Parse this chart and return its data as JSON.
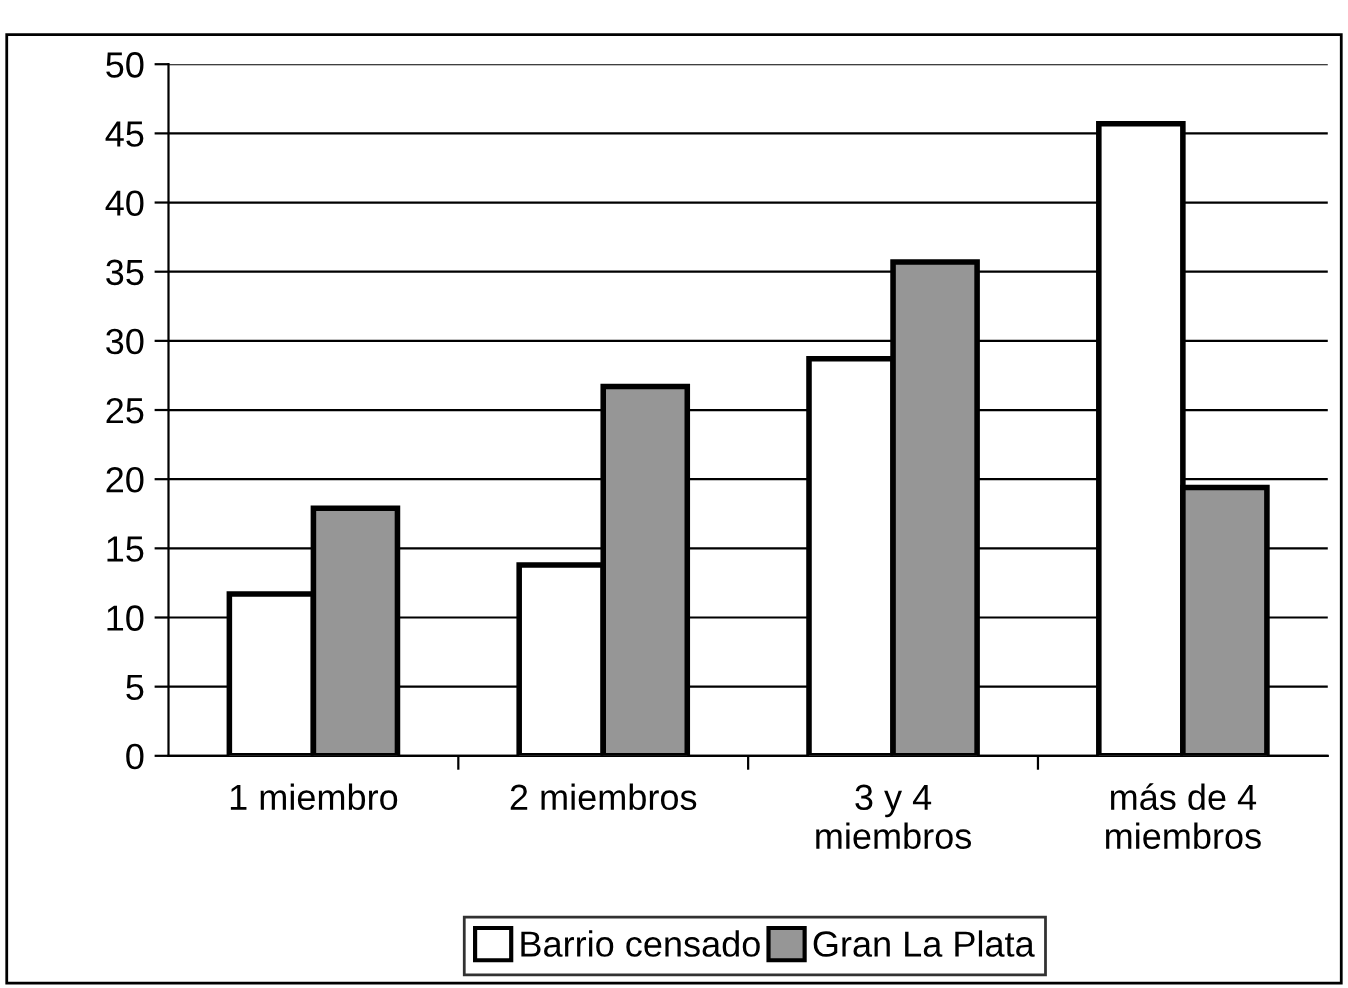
{
  "chart_data": {
    "type": "bar",
    "categories": [
      "1 miembro",
      "2 miembros",
      "3 y 4\nmiembros",
      "más de 4\nmiembros"
    ],
    "series": [
      {
        "name": "Barrio censado",
        "color": "#ffffff",
        "values": [
          11.7,
          13.8,
          28.7,
          45.7
        ]
      },
      {
        "name": "Gran La Plata",
        "color": "#969696",
        "values": [
          17.9,
          26.7,
          35.7,
          19.4
        ]
      }
    ],
    "ylim": [
      0,
      50
    ],
    "yticks": [
      0,
      5,
      10,
      15,
      20,
      25,
      30,
      35,
      40,
      45,
      50
    ],
    "grid": "y",
    "legend": "bottom"
  }
}
